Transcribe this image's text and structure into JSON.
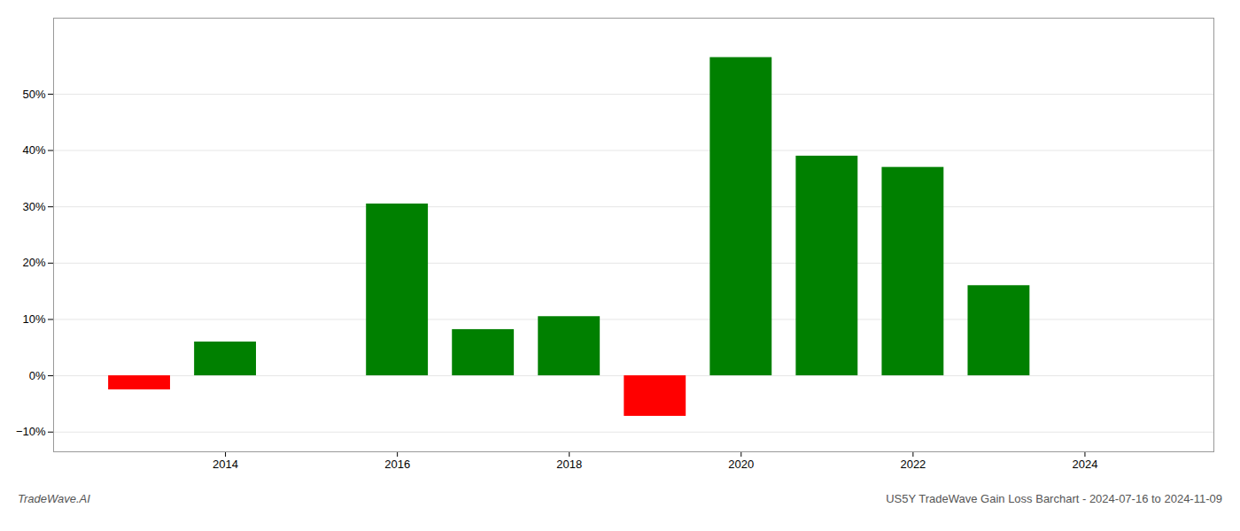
{
  "chart_data": {
    "type": "bar",
    "title": "US5Y TradeWave Gain Loss Barchart - 2024-07-16 to 2024-11-09",
    "annotations": [
      "TradeWave.AI"
    ],
    "x": [
      2013,
      2014,
      2016,
      2017,
      2018,
      2019,
      2020,
      2021,
      2022,
      2023
    ],
    "values": [
      -0.025,
      0.06,
      0.305,
      0.082,
      0.105,
      -0.072,
      0.565,
      0.39,
      0.37,
      0.16
    ],
    "colors": [
      "#ff0000",
      "#008000",
      "#008000",
      "#008000",
      "#008000",
      "#ff0000",
      "#008000",
      "#008000",
      "#008000",
      "#008000"
    ],
    "xlim": [
      2012.0,
      2025.5
    ],
    "xticks": [
      2014,
      2016,
      2018,
      2020,
      2022,
      2024
    ],
    "ylim": [
      -0.135,
      0.635
    ],
    "yticks": [
      {
        "value": -0.1,
        "label": "−10%"
      },
      {
        "value": 0.0,
        "label": "0%"
      },
      {
        "value": 0.1,
        "label": "10%"
      },
      {
        "value": 0.2,
        "label": "20%"
      },
      {
        "value": 0.3,
        "label": "30%"
      },
      {
        "value": 0.4,
        "label": "40%"
      },
      {
        "value": 0.5,
        "label": "50%"
      }
    ],
    "grid": true
  }
}
